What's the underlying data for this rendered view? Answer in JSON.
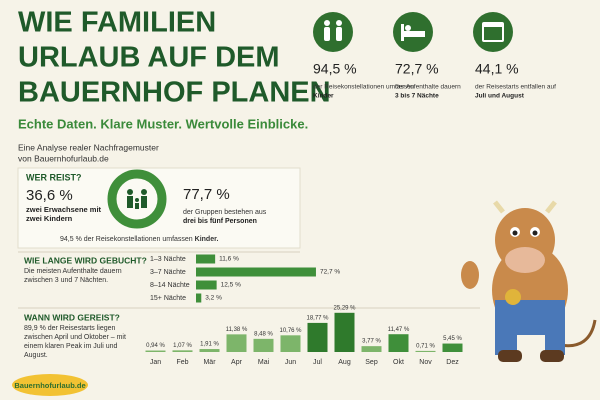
{
  "header": {
    "title_lines": [
      "WIE FAMILIEN",
      "URLAUB AUF DEM",
      "BAUERNHOF PLANEN"
    ],
    "subtitle": "Echte Daten. Klare Muster. Wertvolle Einblicke.",
    "intro_lines": [
      "Eine Analyse realer Nachfragemuster",
      "von Bauernhofurlaub.de"
    ]
  },
  "stats": [
    {
      "value": "94,5 %",
      "text": "der Reisekonstellationen umfassen",
      "highlight": "Kinder"
    },
    {
      "value": "72,7 %",
      "text": "der Aufenthalte dauern",
      "highlight": "3 bis 7 Nächte"
    },
    {
      "value": "44,1 %",
      "text": "der Reisestarts entfallen auf",
      "highlight": "Juli und August"
    }
  ],
  "who": {
    "heading": "WER REIST?",
    "value": "36,6 %",
    "text": "zwei Erwachsene mit zwei Kindern",
    "group_value": "77,7 %",
    "group_text": "der Gruppen bestehen aus",
    "group_highlight": "drei bis fünf Personen",
    "note": "94,5 % der Reisekonstellationen umfassen",
    "note_highlight": "Kinder."
  },
  "chart_data": [
    {
      "type": "bar",
      "orientation": "horizontal",
      "title": "WIE LANGE WIRD GEBUCHT?",
      "subtitle": "Die meisten Aufenthalte dauern zwischen 3 und 7 Nächten.",
      "categories": [
        "1–3 Nächte",
        "3–7 Nächte",
        "8–14 Nächte",
        "15+ Nächte"
      ],
      "values": [
        11.6,
        72.7,
        12.5,
        3.2
      ],
      "value_labels": [
        "11,6 %",
        "72,7 %",
        "12,5 %",
        "3,2 %"
      ],
      "color": "#3f8f3a"
    },
    {
      "type": "bar",
      "orientation": "vertical",
      "title": "WANN WIRD GEREIST?",
      "subtitle": "89,9 % der Reisestarts liegen zwischen April und Oktober – mit einem klaren Peak im Juli und August.",
      "categories": [
        "Jan",
        "Feb",
        "Mär",
        "Apr",
        "Mai",
        "Jun",
        "Jul",
        "Aug",
        "Sep",
        "Okt",
        "Nov",
        "Dez"
      ],
      "values": [
        0.94,
        1.07,
        1.91,
        11.38,
        8.48,
        10.76,
        18.77,
        25.29,
        3.77,
        11.47,
        0.71,
        5.45
      ],
      "value_labels": [
        "0,94 %",
        "1,07 %",
        "1,91 %",
        "11,38 %",
        "8,48 %",
        "10,76 %",
        "18,77 %",
        "25,29 %",
        "3,77 %",
        "11,47 %",
        "0,71 %",
        "5,45 %"
      ],
      "colors": [
        "#7db56a",
        "#7db56a",
        "#7db56a",
        "#7db56a",
        "#7db56a",
        "#7db56a",
        "#2f7a2c",
        "#2f7a2c",
        "#7db56a",
        "#3f8f3a",
        "#7db56a",
        "#3f8f3a"
      ]
    }
  ],
  "logo": "Bauernhofurlaub.de"
}
